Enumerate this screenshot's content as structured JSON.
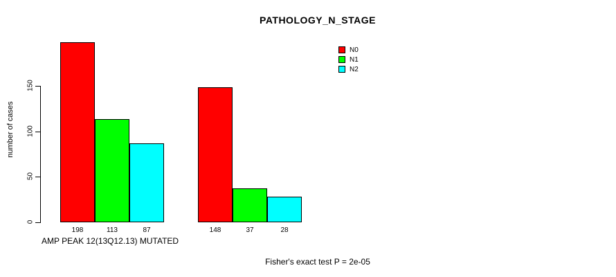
{
  "chart_data": {
    "type": "bar",
    "title": "PATHOLOGY_N_STAGE",
    "ylabel": "number of cases",
    "xlabel": "",
    "ylim": [
      0,
      205
    ],
    "yticks": [
      0,
      50,
      100,
      150
    ],
    "grid": false,
    "legend_position": "top-right",
    "series_names": [
      "N0",
      "N1",
      "N2"
    ],
    "bar_colors": [
      "#FF0000",
      "#00FF00",
      "#00FFFF"
    ],
    "legend": [
      {
        "label": "N0",
        "color": "#FF0000"
      },
      {
        "label": "N1",
        "color": "#00FF00"
      },
      {
        "label": "N2",
        "color": "#00FFFF"
      }
    ],
    "groups": [
      {
        "label": "AMP PEAK 12(13Q12.13) MUTATED",
        "values": [
          198,
          113,
          87
        ]
      },
      {
        "label": "",
        "values": [
          148,
          37,
          28
        ]
      }
    ],
    "annotation": "Fisher's exact test P = 2e-05"
  }
}
